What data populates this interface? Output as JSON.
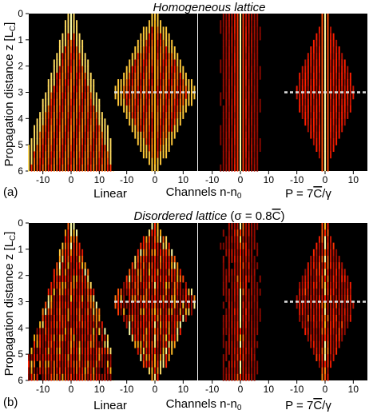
{
  "figure": {
    "rows": [
      {
        "title": "Homogeneous lattice",
        "title_suffix": "",
        "panel_label": "(a)",
        "ylabel": "Propagation distance z [L",
        "ylabel_sub": "C",
        "ylabel_end": "]",
        "yticks": [
          0,
          1,
          2,
          3,
          4,
          5,
          6
        ],
        "bottom_left_label": "Linear",
        "bottom_center_label": "Channels n-n",
        "bottom_center_sub": "0",
        "bottom_right_label": "P = 7",
        "bottom_right_C": "C",
        "bottom_right_end": "/γ",
        "panels": [
          {
            "xticks": [
              -10,
              0,
              10
            ],
            "dashed_at": null,
            "pattern": "diamond-full"
          },
          {
            "xticks": [
              -10,
              0,
              10
            ],
            "dashed_at": 3,
            "pattern": "diamond-half"
          },
          {
            "xticks": [
              -10,
              0,
              10
            ],
            "dashed_at": null,
            "pattern": "focused"
          },
          {
            "xticks": [
              -10,
              0,
              10
            ],
            "dashed_at": 3,
            "pattern": "focused-revival"
          }
        ]
      },
      {
        "title": "Disordered lattice",
        "title_suffix": " (σ = 0.8",
        "title_C": "C",
        "title_end": ")",
        "panel_label": "(b)",
        "ylabel": "Propagation distance z [L",
        "ylabel_sub": "C",
        "ylabel_end": "]",
        "yticks": [
          0,
          1,
          2,
          3,
          4,
          5,
          6
        ],
        "bottom_left_label": "Linear",
        "bottom_center_label": "Channels n-n",
        "bottom_center_sub": "0",
        "bottom_right_label": "P = 7",
        "bottom_right_C": "C",
        "bottom_right_end": "/γ",
        "panels": [
          {
            "xticks": [
              -10,
              0,
              10
            ],
            "dashed_at": null,
            "pattern": "diamond-full-disorder"
          },
          {
            "xticks": [
              -10,
              0,
              10
            ],
            "dashed_at": 3,
            "pattern": "diamond-half-disorder"
          },
          {
            "xticks": [
              -10,
              0,
              10
            ],
            "dashed_at": null,
            "pattern": "focused-disorder"
          },
          {
            "xticks": [
              -10,
              0,
              10
            ],
            "dashed_at": 3,
            "pattern": "focused-revival-disorder"
          }
        ]
      }
    ],
    "x_range": [
      -15,
      15
    ],
    "z_range": [
      0,
      6
    ],
    "colors": {
      "background": "#000000",
      "hot": "#ff2200",
      "bright": "#ffff99",
      "dashed": "#e0e0e0"
    }
  }
}
